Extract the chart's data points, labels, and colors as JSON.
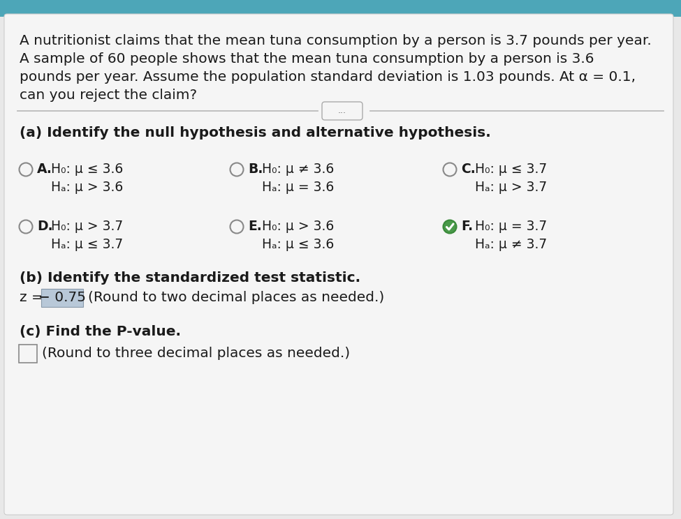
{
  "bg_top_color": "#4da6b8",
  "bg_main_color": "#e8e8e8",
  "white_bg": "#f5f5f5",
  "intro_text_lines": [
    "A nutritionist claims that the mean tuna consumption by a person is 3.7 pounds per year.",
    "A sample of 60 people shows that the mean tuna consumption by a person is 3.6",
    "pounds per year. Assume the population standard deviation is 1.03 pounds. At α = 0.1,",
    "can you reject the claim?"
  ],
  "part_a_label": "(a) Identify the null hypothesis and alternative hypothesis.",
  "options": [
    {
      "letter": "A",
      "h0": "H₀: μ ≤ 3.6",
      "ha": "Hₐ: μ > 3.6",
      "selected": false
    },
    {
      "letter": "B",
      "h0": "H₀: μ ≠ 3.6",
      "ha": "Hₐ: μ = 3.6",
      "selected": false
    },
    {
      "letter": "C",
      "h0": "H₀: μ ≤ 3.7",
      "ha": "Hₐ: μ > 3.7",
      "selected": false
    },
    {
      "letter": "D",
      "h0": "H₀: μ > 3.7",
      "ha": "Hₐ: μ ≤ 3.7",
      "selected": false
    },
    {
      "letter": "E",
      "h0": "H₀: μ > 3.6",
      "ha": "Hₐ: μ ≤ 3.6",
      "selected": false
    },
    {
      "letter": "F",
      "h0": "H₀: μ = 3.7",
      "ha": "Hₐ: μ ≠ 3.7",
      "selected": true
    }
  ],
  "part_b_label": "(b) Identify the standardized test statistic.",
  "z_prefix": "z = ",
  "z_value": "− 0.75",
  "z_suffix": "(Round to two decimal places as needed.)",
  "part_c_label": "(c) Find the P-value.",
  "p_suffix": "(Round to three decimal places as needed.)",
  "separator_label": "...",
  "text_color": "#1a1a1a",
  "radio_color": "#888888",
  "selected_fill": "#4a9a4a",
  "selected_border": "#3a8a3a",
  "z_box_bg": "#b8c8d8",
  "divider_color": "#bbbbbb",
  "intro_fontsize": 14.5,
  "body_fontsize": 14.5,
  "options_fontsize": 13.5
}
